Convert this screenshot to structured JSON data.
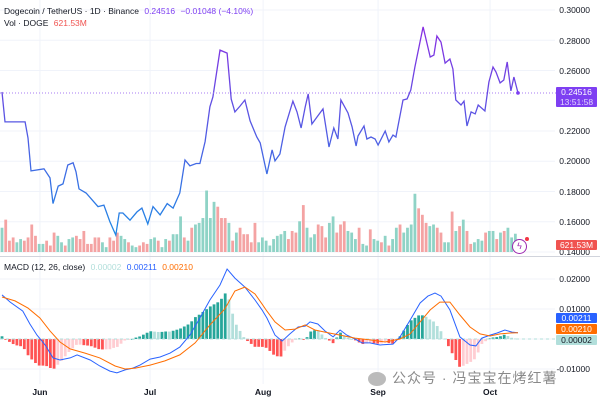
{
  "header": {
    "symbol": "Dogecoin / TetherUS · 1D · Binance",
    "last_price": "0.24516",
    "change": "−0.01048 (−4.10%)",
    "vol_label": "Vol · DOGE",
    "vol_value": "621.53M"
  },
  "macd_legend": {
    "label": "MACD (12, 26, close)",
    "hist": "0.00002",
    "macd": "0.00211",
    "signal": "0.00210"
  },
  "price_tag": {
    "price": "0.24516",
    "countdown": "13:51:58"
  },
  "vol_tag": "621.53M",
  "macd_tags": {
    "macd": "0.00211",
    "signal": "0.00210",
    "hist": "0.00002"
  },
  "price_axis": [
    "0.30000",
    "0.28000",
    "0.26000",
    "0.22000",
    "0.20000",
    "0.18000",
    "0.16000",
    "0.14000"
  ],
  "macd_axis": [
    "0.02000",
    "0.01000",
    "-0.01000"
  ],
  "watermark": "公众号 · 冯宝宝在烤红薯",
  "colors": {
    "up": "#8fd3c6",
    "down": "#f4a3a3",
    "line_top": "#8b2be2",
    "line_bottom": "#1e88e5",
    "macd": "#2962ff",
    "signal": "#ff6d00",
    "hist_up_strong": "#26a69a",
    "hist_up_weak": "#b2dfdb",
    "hist_down_strong": "#ff5252",
    "hist_down_weak": "#ffcdd2",
    "price_tag": "#7e3ff2",
    "vol_tag": "#f05350"
  },
  "chart_data": [
    {
      "type": "line",
      "title": "Dogecoin / TetherUS · 1D · Binance",
      "x_unit": "day index",
      "xlim": [
        0,
        138.7
      ],
      "ylim": [
        0.14,
        0.3
      ],
      "x_ticks": [
        {
          "label": "Jun",
          "x": 10.2
        },
        {
          "label": "Jul",
          "x": 39.8
        },
        {
          "label": "Aug",
          "x": 70.2
        },
        {
          "label": "Sep",
          "x": 101.1
        },
        {
          "label": "Oct",
          "x": 131.2
        }
      ],
      "y_ticks": [
        0.14,
        0.16,
        0.18,
        0.2,
        0.22,
        0.26,
        0.28,
        0.3
      ],
      "points": [
        [
          0,
          0.2458
        ],
        [
          0.8,
          0.226
        ],
        [
          4.8,
          0.226
        ],
        [
          6.2,
          0.226
        ],
        [
          7,
          0.2154
        ],
        [
          7.8,
          0.1936
        ],
        [
          11.3,
          0.195
        ],
        [
          12.9,
          0.189
        ],
        [
          13.7,
          0.172
        ],
        [
          15.1,
          0.1836
        ],
        [
          16.4,
          0.185
        ],
        [
          17.7,
          0.1975
        ],
        [
          19.1,
          0.199
        ],
        [
          19.9,
          0.193
        ],
        [
          20.7,
          0.1817
        ],
        [
          22.6,
          0.179
        ],
        [
          25.8,
          0.17
        ],
        [
          27.4,
          0.171
        ],
        [
          29,
          0.16
        ],
        [
          30.6,
          0.1512
        ],
        [
          31.5,
          0.1658
        ],
        [
          32.5,
          0.1658
        ],
        [
          34.4,
          0.161
        ],
        [
          36.3,
          0.1665
        ],
        [
          37.6,
          0.169
        ],
        [
          39.2,
          0.1585
        ],
        [
          40.6,
          0.17
        ],
        [
          42.5,
          0.1645
        ],
        [
          44.4,
          0.172
        ],
        [
          46,
          0.169
        ],
        [
          47.8,
          0.179
        ],
        [
          49.2,
          0.2008
        ],
        [
          50.5,
          0.197
        ],
        [
          52.2,
          0.1985
        ],
        [
          53.2,
          0.1985
        ],
        [
          54.6,
          0.213
        ],
        [
          55.9,
          0.236
        ],
        [
          56.7,
          0.2425
        ],
        [
          58.6,
          0.2735
        ],
        [
          60.5,
          0.2715
        ],
        [
          61.6,
          0.2411
        ],
        [
          62.6,
          0.2326
        ],
        [
          64,
          0.2365
        ],
        [
          65.3,
          0.2405
        ],
        [
          66.7,
          0.2267
        ],
        [
          68.5,
          0.216
        ],
        [
          69.4,
          0.2121
        ],
        [
          71.2,
          0.1916
        ],
        [
          72.6,
          0.2075
        ],
        [
          73.4,
          0.2002
        ],
        [
          74.7,
          0.2048
        ],
        [
          76.1,
          0.2227
        ],
        [
          78.2,
          0.2398
        ],
        [
          79.3,
          0.2326
        ],
        [
          80.4,
          0.222
        ],
        [
          81.5,
          0.2359
        ],
        [
          82.3,
          0.2445
        ],
        [
          83.3,
          0.2246
        ],
        [
          84.7,
          0.2293
        ],
        [
          86.3,
          0.2346
        ],
        [
          87.9,
          0.2094
        ],
        [
          89.2,
          0.222
        ],
        [
          90.3,
          0.2147
        ],
        [
          91.1,
          0.2405
        ],
        [
          93,
          0.2319
        ],
        [
          94.1,
          0.2227
        ],
        [
          95.2,
          0.2101
        ],
        [
          95.7,
          0.2167
        ],
        [
          97.3,
          0.2233
        ],
        [
          98.1,
          0.2147
        ],
        [
          99.2,
          0.216
        ],
        [
          100.3,
          0.2147
        ],
        [
          101.1,
          0.2107
        ],
        [
          103,
          0.22
        ],
        [
          104,
          0.2127
        ],
        [
          105.1,
          0.2173
        ],
        [
          105.9,
          0.216
        ],
        [
          107.8,
          0.2405
        ],
        [
          108.9,
          0.2412
        ],
        [
          109.9,
          0.2471
        ],
        [
          111,
          0.2623
        ],
        [
          113.2,
          0.2888
        ],
        [
          115.1,
          0.2689
        ],
        [
          116.1,
          0.2702
        ],
        [
          116.9,
          0.2828
        ],
        [
          118,
          0.2788
        ],
        [
          119.1,
          0.2649
        ],
        [
          120.4,
          0.2676
        ],
        [
          121.2,
          0.261
        ],
        [
          122,
          0.2405
        ],
        [
          123.4,
          0.2372
        ],
        [
          124.2,
          0.2398
        ],
        [
          125,
          0.2233
        ],
        [
          126.1,
          0.2326
        ],
        [
          127.2,
          0.2313
        ],
        [
          128,
          0.2372
        ],
        [
          129.8,
          0.2332
        ],
        [
          130.9,
          0.2524
        ],
        [
          132,
          0.2623
        ],
        [
          132.8,
          0.259
        ],
        [
          133.9,
          0.2518
        ],
        [
          134.9,
          0.2537
        ],
        [
          135.8,
          0.2656
        ],
        [
          136.8,
          0.2465
        ],
        [
          137.6,
          0.2557
        ],
        [
          138.7,
          0.24516
        ]
      ]
    },
    {
      "type": "bar",
      "title": "Vol · DOGE",
      "unit": "M",
      "values": [
        825,
        1100,
        385,
        495,
        330,
        440,
        385,
        495,
        935,
        550,
        275,
        275,
        385,
        220,
        660,
        550,
        330,
        220,
        440,
        495,
        550,
        440,
        715,
        275,
        275,
        495,
        495,
        330,
        165,
        495,
        385,
        660,
        550,
        440,
        330,
        220,
        165,
        220,
        330,
        275,
        440,
        495,
        385,
        165,
        440,
        385,
        605,
        605,
        1210,
        495,
        385,
        825,
        935,
        990,
        1155,
        2090,
        1155,
        1705,
        1540,
        1155,
        1155,
        990,
        385,
        660,
        825,
        605,
        605,
        330,
        990,
        330,
        495,
        385,
        220,
        440,
        550,
        605,
        715,
        440,
        715,
        660,
        1045,
        1595,
        825,
        495,
        605,
        935,
        880,
        495,
        990,
        1210,
        660,
        935,
        1045,
        715,
        660,
        440,
        825,
        275,
        220,
        770,
        440,
        385,
        330,
        550,
        220,
        440,
        825,
        935,
        660,
        825,
        935,
        1980,
        1485,
        1265,
        990,
        880,
        935,
        825,
        660,
        330,
        330,
        1375,
        715,
        880,
        1100,
        715,
        275,
        330,
        440,
        385,
        660,
        715,
        715,
        440,
        660,
        715,
        825,
        495,
        621.53
      ],
      "direction": "grrrggrrrrggrrrggrggrrrrrrrggrrrggrggrrrggrggrgggrgrggggggrrrgrgrrrrrggggggggrrrgrgggrrrggrrrgggrggrggrgrggrggggrrrggrrggrgrgrrgggrggrgr"
    },
    {
      "type": "line",
      "title": "MACD (12, 26, close)",
      "ylim": [
        -0.013,
        0.025
      ],
      "y_ticks": [
        0.02,
        0.01,
        -0.01
      ],
      "series": [
        {
          "name": "MACD",
          "points": [
            [
              0,
              0.0147
            ],
            [
              2.2,
              0.0123
            ],
            [
              5.6,
              0.0093
            ],
            [
              7.5,
              0.005
            ],
            [
              9.4,
              0.0013
            ],
            [
              11.6,
              -0.002
            ],
            [
              13.7,
              -0.0063
            ],
            [
              15.6,
              -0.007
            ],
            [
              18.3,
              -0.0063
            ],
            [
              20.2,
              -0.0053
            ],
            [
              23.7,
              -0.007
            ],
            [
              26.3,
              -0.009
            ],
            [
              29,
              -0.0107
            ],
            [
              30.9,
              -0.0113
            ],
            [
              33.1,
              -0.0103
            ],
            [
              35.2,
              -0.0097
            ],
            [
              37.1,
              -0.0087
            ],
            [
              39.8,
              -0.0067
            ],
            [
              42.5,
              -0.006
            ],
            [
              45.2,
              -0.0047
            ],
            [
              47.8,
              -0.0027
            ],
            [
              50.5,
              0.0013
            ],
            [
              53.2,
              0.007
            ],
            [
              55.9,
              0.013
            ],
            [
              58.6,
              0.018
            ],
            [
              60.5,
              0.0233
            ],
            [
              62.6,
              0.0203
            ],
            [
              65.3,
              0.0173
            ],
            [
              68,
              0.013
            ],
            [
              69.9,
              0.0097
            ],
            [
              71.2,
              0.007
            ],
            [
              73.4,
              0.0013
            ],
            [
              75.3,
              -0.0007
            ],
            [
              77.4,
              0.0017
            ],
            [
              79.6,
              0.004
            ],
            [
              81.5,
              0.0043
            ],
            [
              82.8,
              0.0057
            ],
            [
              84.9,
              0.005
            ],
            [
              86.8,
              0.0027
            ],
            [
              89,
              0.0007
            ],
            [
              90.9,
              0.003
            ],
            [
              92.7,
              0.0013
            ],
            [
              94.9,
              0
            ],
            [
              96.8,
              -0.0013
            ],
            [
              98.9,
              -0.0013
            ],
            [
              101.6,
              -0.002
            ],
            [
              105.1,
              -0.0017
            ],
            [
              107,
              0.0007
            ],
            [
              109.7,
              0.0063
            ],
            [
              112.4,
              0.012
            ],
            [
              114.5,
              0.0143
            ],
            [
              116.4,
              0.0153
            ],
            [
              118,
              0.0143
            ],
            [
              120.4,
              0.0097
            ],
            [
              123.1,
              0.0007
            ],
            [
              125.8,
              -0.002
            ],
            [
              127.4,
              -0.0023
            ],
            [
              129,
              0.0003
            ],
            [
              131.2,
              0.0013
            ],
            [
              133.1,
              0.002
            ],
            [
              135.2,
              0.003
            ],
            [
              137.1,
              0.0023
            ],
            [
              138.7,
              0.00211
            ]
          ]
        },
        {
          "name": "Signal",
          "points": [
            [
              0,
              0.014
            ],
            [
              3.5,
              0.0127
            ],
            [
              7,
              0.0103
            ],
            [
              10.2,
              0.007
            ],
            [
              12.9,
              0.0027
            ],
            [
              15.6,
              -0.001
            ],
            [
              18.3,
              -0.0033
            ],
            [
              22.3,
              -0.0047
            ],
            [
              26.3,
              -0.0063
            ],
            [
              30.4,
              -0.009
            ],
            [
              33.1,
              -0.01
            ],
            [
              35.8,
              -0.0097
            ],
            [
              39.8,
              -0.0087
            ],
            [
              43.8,
              -0.0073
            ],
            [
              47.8,
              -0.0053
            ],
            [
              51.9,
              -0.0013
            ],
            [
              55.9,
              0.0047
            ],
            [
              59.9,
              0.01
            ],
            [
              62.6,
              0.016
            ],
            [
              65.3,
              0.0173
            ],
            [
              68,
              0.015
            ],
            [
              69.9,
              0.0117
            ],
            [
              71.2,
              0.0093
            ],
            [
              73.4,
              0.0057
            ],
            [
              76.1,
              0.003
            ],
            [
              78.8,
              0.0033
            ],
            [
              81.5,
              0.0047
            ],
            [
              84.1,
              0.003
            ],
            [
              86.8,
              0.0023
            ],
            [
              90.9,
              0.0013
            ],
            [
              94.9,
              0.0003
            ],
            [
              98.9,
              -0.0003
            ],
            [
              103,
              -0.001
            ],
            [
              107,
              0
            ],
            [
              109.7,
              0.0017
            ],
            [
              112.4,
              0.0057
            ],
            [
              115.1,
              0.0097
            ],
            [
              117.7,
              0.0123
            ],
            [
              120.4,
              0.0123
            ],
            [
              123.1,
              0.008
            ],
            [
              125.8,
              0.004
            ],
            [
              128.5,
              0.0017
            ],
            [
              131.2,
              0.001
            ],
            [
              133.9,
              0.0017
            ],
            [
              136.6,
              0.002
            ],
            [
              138.7,
              0.0021
            ]
          ]
        }
      ],
      "histogram": "MACD − Signal"
    }
  ]
}
